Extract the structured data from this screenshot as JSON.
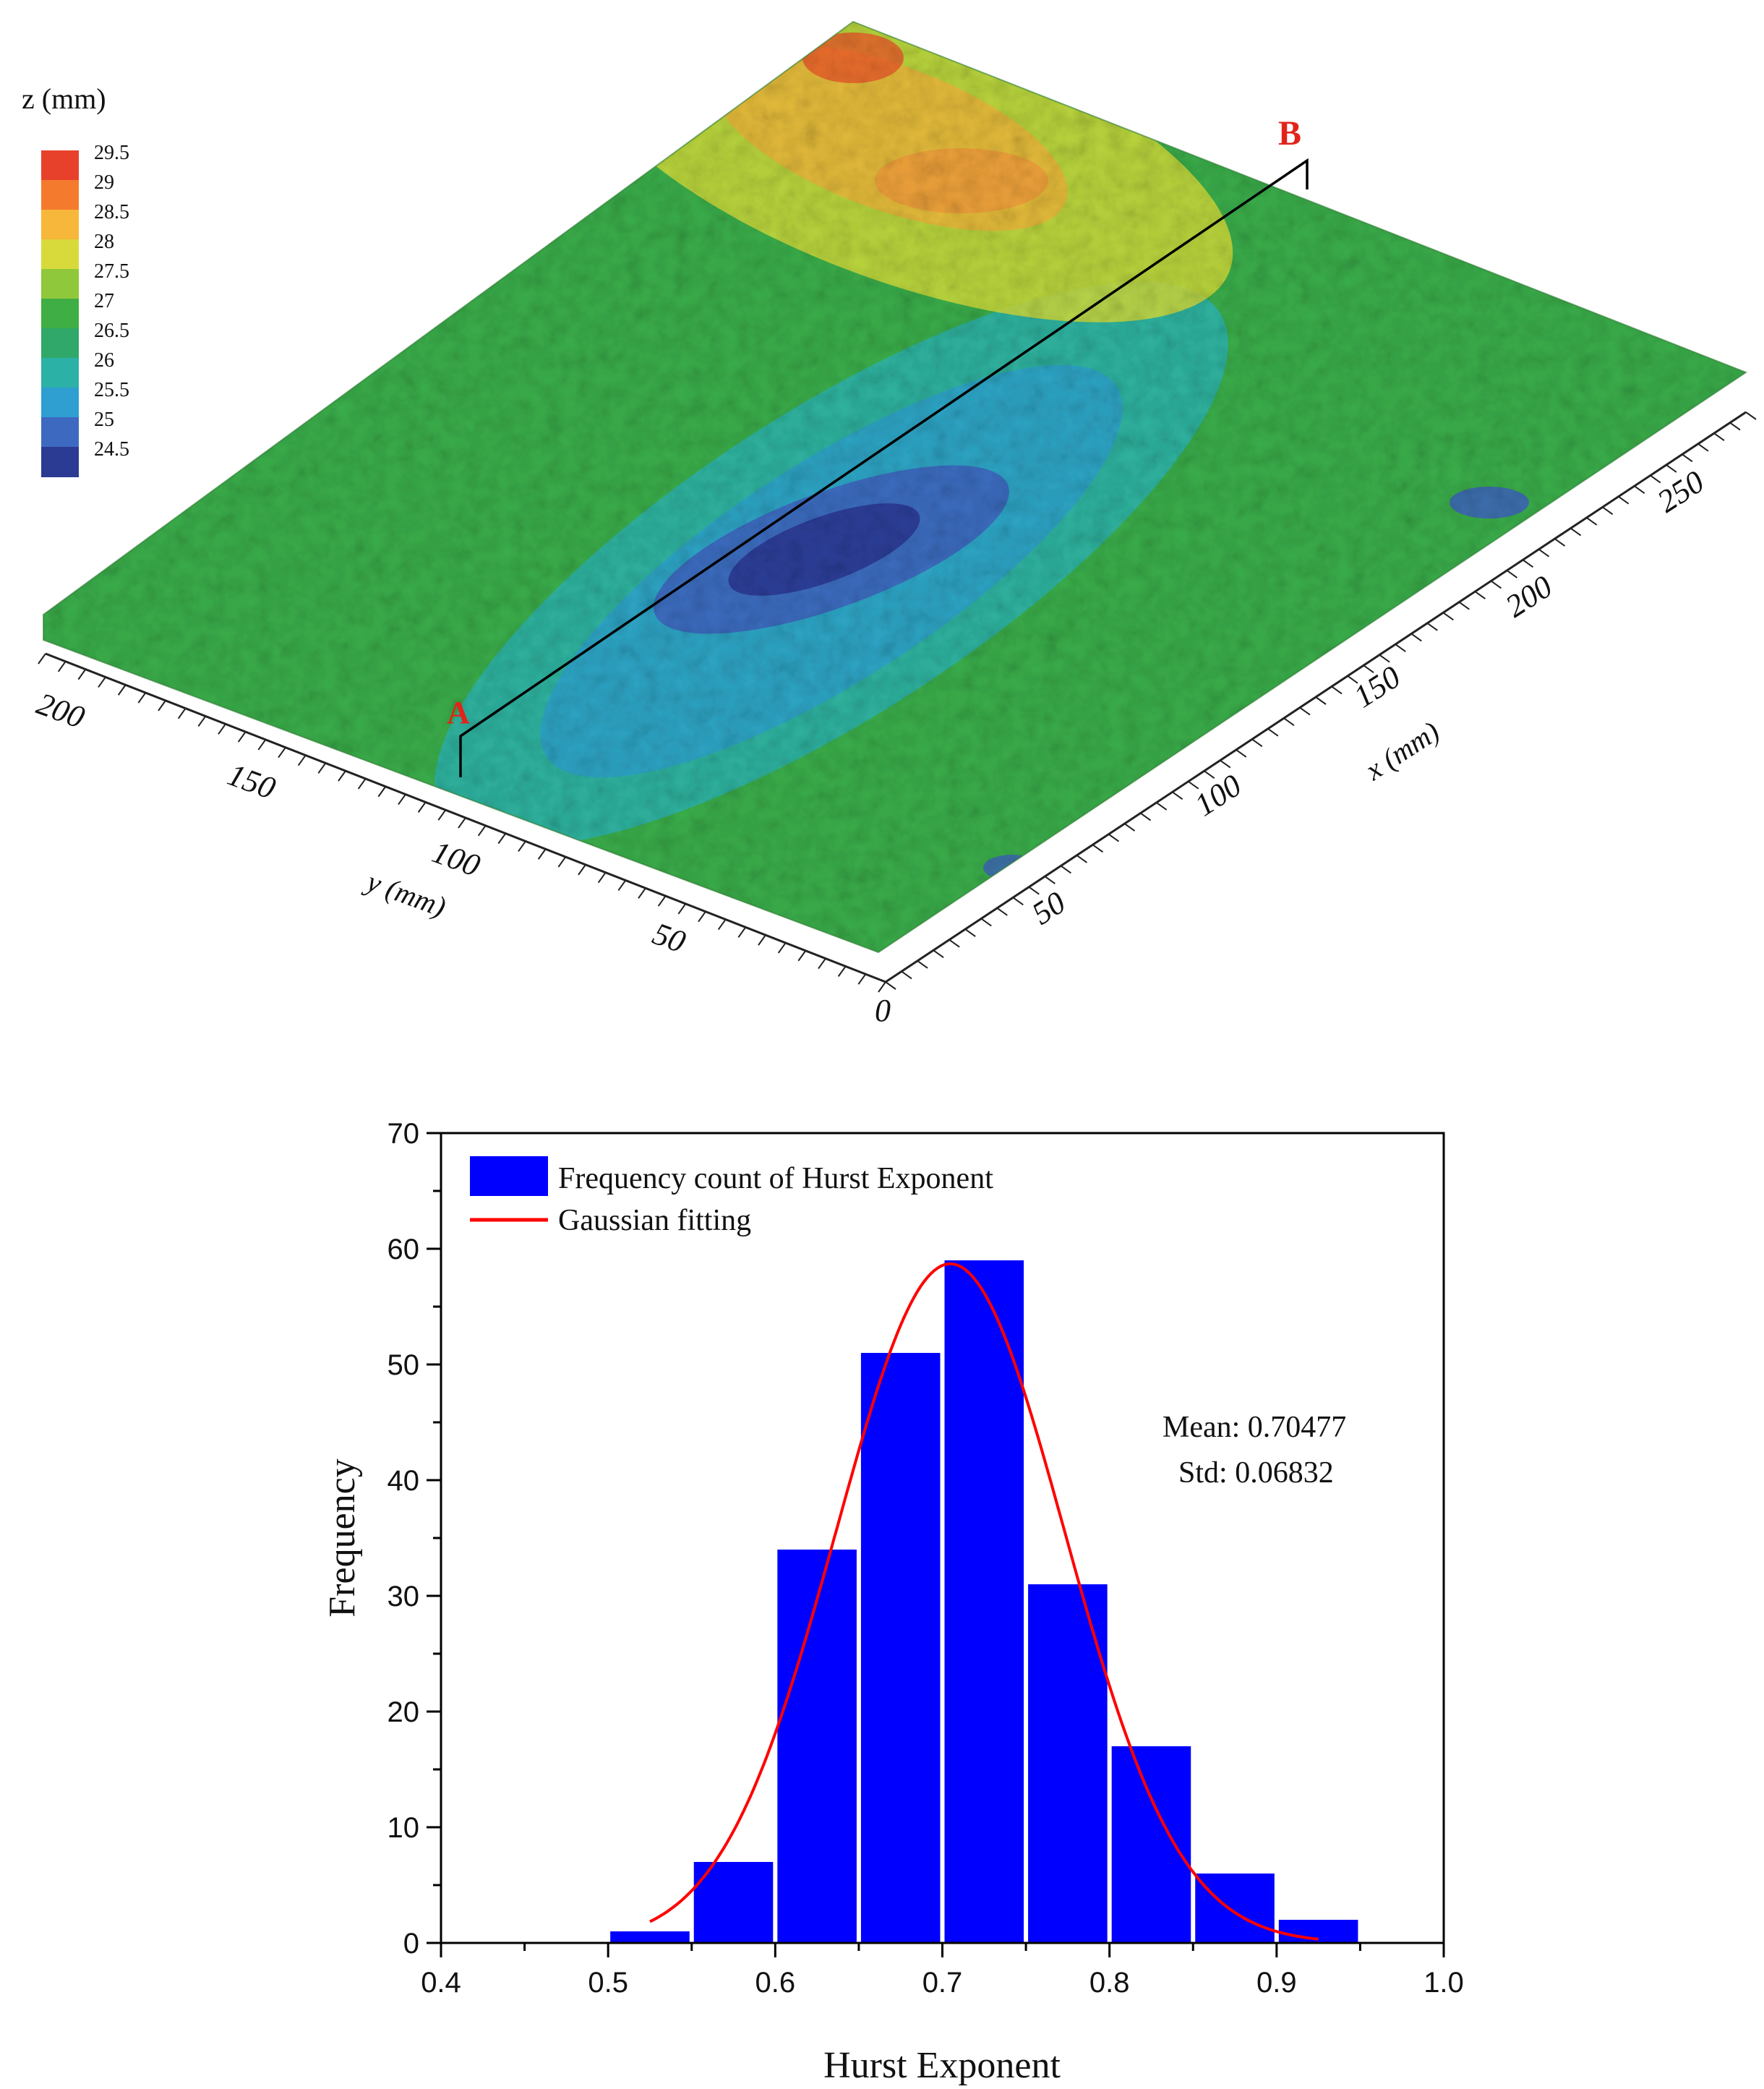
{
  "chart_data": [
    {
      "type": "surface3d",
      "colorbar": {
        "title": "z (mm)",
        "labels": [
          "29.5",
          "29",
          "28.5",
          "28",
          "27.5",
          "27",
          "26.5",
          "26",
          "25.5",
          "25",
          "24.5"
        ],
        "colors": [
          "#e8412b",
          "#f47a2e",
          "#f6b73a",
          "#d7da3a",
          "#8fc83b",
          "#3fae45",
          "#2fa86a",
          "#2bb1a6",
          "#2f9ed1",
          "#3e69c0",
          "#2b3a93"
        ]
      },
      "x_axis": {
        "label": "x (mm)",
        "ticks": [
          "50",
          "100",
          "150",
          "200",
          "250"
        ]
      },
      "y_axis": {
        "label": "y (mm)",
        "ticks": [
          "200",
          "150",
          "100",
          "50"
        ]
      },
      "origin_label": "0",
      "zrange": [
        24.5,
        29.5
      ],
      "markers": [
        {
          "name": "A"
        },
        {
          "name": "B"
        }
      ]
    },
    {
      "type": "bar",
      "title": "",
      "xlabel": "Hurst Exponent",
      "ylabel": "Frequency",
      "xlim": [
        0.4,
        1.0
      ],
      "ylim": [
        0,
        70
      ],
      "x_ticks": [
        "0.4",
        "0.5",
        "0.6",
        "0.7",
        "0.8",
        "0.9",
        "1.0"
      ],
      "y_ticks": [
        "0",
        "10",
        "20",
        "30",
        "40",
        "50",
        "60",
        "70"
      ],
      "bin_width": 0.05,
      "bin_centers": [
        0.525,
        0.575,
        0.625,
        0.675,
        0.725,
        0.775,
        0.825,
        0.875,
        0.925
      ],
      "values": [
        1,
        7,
        34,
        51,
        59,
        31,
        17,
        6,
        2
      ],
      "bar_color": "#0000ff",
      "fit": {
        "name": "Gaussian fitting",
        "mean": 0.70477,
        "std": 0.06832,
        "amplitude": 58.7,
        "x_range": [
          0.525,
          0.925
        ],
        "color": "#ff0000"
      },
      "legend": {
        "position": "top-left",
        "entries": [
          "Frequency count of Hurst Exponent",
          "Gaussian fitting"
        ]
      },
      "annotations": [
        "Mean: 0.70477",
        "Std: 0.06832"
      ]
    }
  ]
}
